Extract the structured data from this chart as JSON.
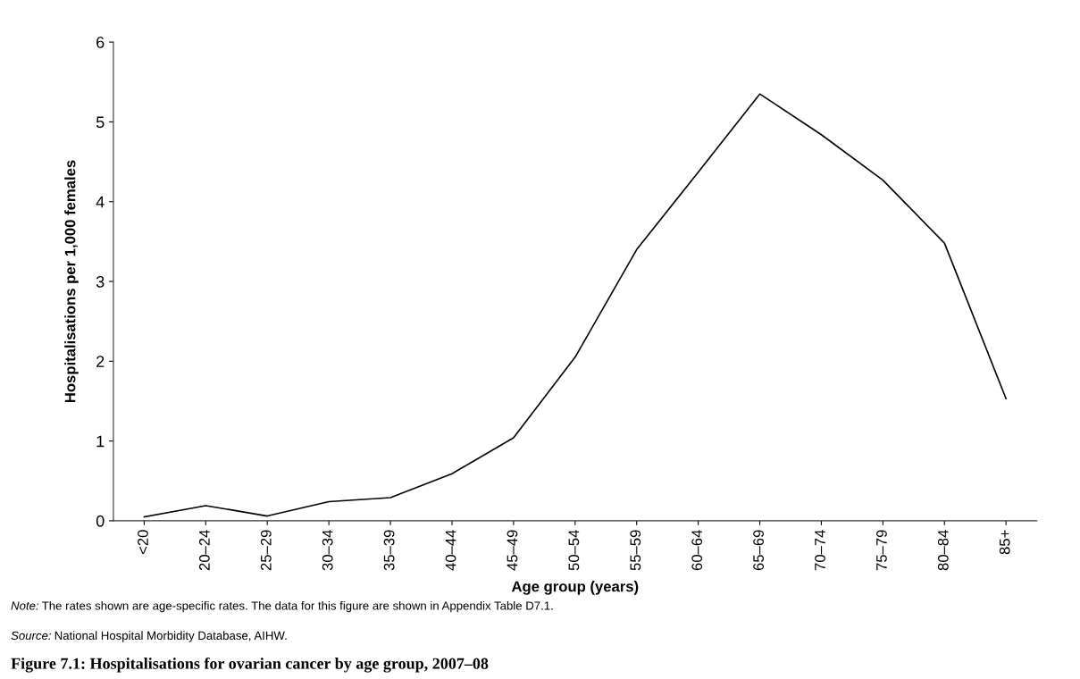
{
  "chart_data": {
    "type": "line",
    "title": "Figure 7.1: Hospitalisations for ovarian cancer by age group, 2007–08",
    "xlabel": "Age group (years)",
    "ylabel": "Hospitalisations per 1,000 females",
    "categories": [
      "<20",
      "20–24",
      "25–29",
      "30–34",
      "35–39",
      "40–44",
      "45–49",
      "50–54",
      "55–59",
      "60–64",
      "65–69",
      "70–74",
      "75–79",
      "80–84",
      "85+"
    ],
    "series": [
      {
        "color": "#000000",
        "values": [
          0.05,
          0.19,
          0.06,
          0.24,
          0.29,
          0.59,
          1.04,
          2.05,
          3.4,
          4.37,
          5.35,
          4.84,
          4.27,
          3.48,
          1.53
        ]
      }
    ],
    "ylim": [
      0,
      6
    ],
    "yticks": [
      0,
      1,
      2,
      3,
      4,
      5,
      6
    ],
    "grid": false,
    "legend": false,
    "marker": "none",
    "line_style": "solid",
    "annotations": [
      "Note: The rates shown are age-specific rates. The data for this figure are shown in Appendix Table D7.1.",
      "Source: National Hospital Morbidity Database, AIHW."
    ]
  }
}
